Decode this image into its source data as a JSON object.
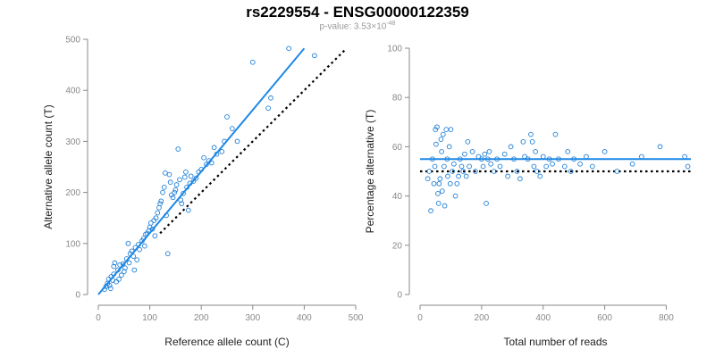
{
  "figure": {
    "title": "rs2229554 - ENSG00000122359",
    "pvalue_prefix": "p-value: 3.53×10",
    "pvalue_exponent": "-48"
  },
  "colors": {
    "points": "#1e7fd6",
    "fit": "#1e88e5",
    "reference": "#000000",
    "axis": "#888888"
  },
  "chart_data": [
    {
      "type": "scatter",
      "xlabel": "Reference allele count (C)",
      "ylabel": "Alternative allele count (T)",
      "xlim": [
        0,
        500
      ],
      "ylim": [
        0,
        500
      ],
      "xticks": [
        0,
        100,
        200,
        300,
        400,
        500
      ],
      "yticks": [
        0,
        100,
        200,
        300,
        400,
        500
      ],
      "grid": false,
      "points": [
        [
          12,
          10
        ],
        [
          15,
          16
        ],
        [
          18,
          22
        ],
        [
          20,
          30
        ],
        [
          22,
          18
        ],
        [
          24,
          12
        ],
        [
          25,
          35
        ],
        [
          28,
          28
        ],
        [
          30,
          40
        ],
        [
          30,
          55
        ],
        [
          32,
          62
        ],
        [
          35,
          25
        ],
        [
          38,
          48
        ],
        [
          40,
          30
        ],
        [
          42,
          58
        ],
        [
          45,
          38
        ],
        [
          48,
          60
        ],
        [
          50,
          45
        ],
        [
          52,
          52
        ],
        [
          55,
          70
        ],
        [
          58,
          100
        ],
        [
          60,
          62
        ],
        [
          62,
          80
        ],
        [
          65,
          85
        ],
        [
          68,
          75
        ],
        [
          70,
          48
        ],
        [
          72,
          92
        ],
        [
          75,
          68
        ],
        [
          78,
          98
        ],
        [
          80,
          88
        ],
        [
          85,
          105
        ],
        [
          88,
          110
        ],
        [
          90,
          95
        ],
        [
          92,
          118
        ],
        [
          95,
          120
        ],
        [
          98,
          125
        ],
        [
          100,
          132
        ],
        [
          102,
          140
        ],
        [
          105,
          128
        ],
        [
          108,
          145
        ],
        [
          110,
          115
        ],
        [
          112,
          150
        ],
        [
          115,
          160
        ],
        [
          118,
          170
        ],
        [
          120,
          178
        ],
        [
          122,
          183
        ],
        [
          125,
          200
        ],
        [
          128,
          210
        ],
        [
          130,
          238
        ],
        [
          132,
          155
        ],
        [
          135,
          80
        ],
        [
          138,
          235
        ],
        [
          140,
          220
        ],
        [
          142,
          195
        ],
        [
          145,
          190
        ],
        [
          148,
          200
        ],
        [
          150,
          205
        ],
        [
          152,
          215
        ],
        [
          155,
          285
        ],
        [
          158,
          225
        ],
        [
          160,
          185
        ],
        [
          162,
          178
        ],
        [
          165,
          198
        ],
        [
          168,
          230
        ],
        [
          170,
          240
        ],
        [
          172,
          210
        ],
        [
          175,
          165
        ],
        [
          178,
          218
        ],
        [
          180,
          232
        ],
        [
          185,
          222
        ],
        [
          190,
          228
        ],
        [
          195,
          240
        ],
        [
          200,
          245
        ],
        [
          205,
          268
        ],
        [
          210,
          255
        ],
        [
          215,
          262
        ],
        [
          220,
          258
        ],
        [
          225,
          288
        ],
        [
          230,
          275
        ],
        [
          240,
          280
        ],
        [
          245,
          300
        ],
        [
          250,
          348
        ],
        [
          260,
          325
        ],
        [
          270,
          300
        ],
        [
          300,
          455
        ],
        [
          330,
          365
        ],
        [
          335,
          385
        ],
        [
          370,
          482
        ],
        [
          420,
          468
        ]
      ],
      "fit_line": {
        "x": [
          0,
          400
        ],
        "y": [
          0,
          482
        ]
      },
      "reference_line": {
        "x": [
          120,
          480
        ],
        "y": [
          120,
          480
        ]
      }
    },
    {
      "type": "scatter",
      "xlabel": "Total number of reads",
      "ylabel": "Percentage alternative (T)",
      "xlim": [
        0,
        880
      ],
      "ylim": [
        0,
        100
      ],
      "xticks": [
        0,
        200,
        400,
        600,
        800
      ],
      "yticks": [
        0,
        20,
        40,
        60,
        80,
        100
      ],
      "grid": false,
      "points": [
        [
          25,
          47
        ],
        [
          30,
          50
        ],
        [
          35,
          34
        ],
        [
          40,
          55
        ],
        [
          45,
          45
        ],
        [
          48,
          52
        ],
        [
          50,
          67
        ],
        [
          52,
          61
        ],
        [
          55,
          68
        ],
        [
          58,
          41
        ],
        [
          60,
          37
        ],
        [
          62,
          45
        ],
        [
          65,
          47
        ],
        [
          68,
          63
        ],
        [
          70,
          58
        ],
        [
          72,
          42
        ],
        [
          75,
          65
        ],
        [
          78,
          52
        ],
        [
          80,
          36
        ],
        [
          85,
          67
        ],
        [
          88,
          55
        ],
        [
          90,
          48
        ],
        [
          95,
          60
        ],
        [
          98,
          45
        ],
        [
          100,
          67
        ],
        [
          105,
          50
        ],
        [
          110,
          53
        ],
        [
          115,
          40
        ],
        [
          120,
          45
        ],
        [
          125,
          48
        ],
        [
          130,
          55
        ],
        [
          135,
          52
        ],
        [
          140,
          50
        ],
        [
          145,
          57
        ],
        [
          150,
          48
        ],
        [
          155,
          62
        ],
        [
          160,
          52
        ],
        [
          170,
          58
        ],
        [
          180,
          50
        ],
        [
          190,
          56
        ],
        [
          200,
          55
        ],
        [
          205,
          52
        ],
        [
          210,
          57
        ],
        [
          215,
          37
        ],
        [
          220,
          55
        ],
        [
          225,
          58
        ],
        [
          230,
          53
        ],
        [
          240,
          50
        ],
        [
          250,
          55
        ],
        [
          260,
          52
        ],
        [
          275,
          57
        ],
        [
          285,
          48
        ],
        [
          295,
          60
        ],
        [
          305,
          55
        ],
        [
          315,
          50
        ],
        [
          325,
          47
        ],
        [
          335,
          62
        ],
        [
          340,
          56
        ],
        [
          350,
          55
        ],
        [
          360,
          65
        ],
        [
          365,
          62
        ],
        [
          370,
          52
        ],
        [
          375,
          58
        ],
        [
          380,
          50
        ],
        [
          390,
          48
        ],
        [
          400,
          56
        ],
        [
          410,
          52
        ],
        [
          420,
          55
        ],
        [
          430,
          53
        ],
        [
          440,
          65
        ],
        [
          450,
          55
        ],
        [
          470,
          52
        ],
        [
          480,
          58
        ],
        [
          490,
          50
        ],
        [
          500,
          55
        ],
        [
          520,
          53
        ],
        [
          540,
          56
        ],
        [
          560,
          52
        ],
        [
          600,
          58
        ],
        [
          640,
          50
        ],
        [
          690,
          53
        ],
        [
          720,
          56
        ],
        [
          780,
          60
        ],
        [
          860,
          56
        ],
        [
          870,
          52
        ]
      ],
      "fit_line": {
        "x": [
          0,
          880
        ],
        "y": [
          55,
          55
        ]
      },
      "reference_line": {
        "x": [
          0,
          880
        ],
        "y": [
          50,
          50
        ]
      }
    }
  ]
}
